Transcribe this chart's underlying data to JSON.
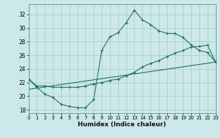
{
  "xlabel": "Humidex (Indice chaleur)",
  "bg_color": "#cce8e8",
  "grid_color": "#aacccc",
  "line_color": "#1a6b60",
  "xlim": [
    0,
    23
  ],
  "ylim": [
    17.5,
    33.5
  ],
  "xticks": [
    0,
    1,
    2,
    3,
    4,
    5,
    6,
    7,
    8,
    9,
    10,
    11,
    12,
    13,
    14,
    15,
    16,
    17,
    18,
    19,
    20,
    21,
    22,
    23
  ],
  "yticks": [
    18,
    20,
    22,
    24,
    26,
    28,
    30,
    32
  ],
  "line1_x": [
    0,
    1,
    2,
    3,
    4,
    5,
    6,
    7,
    8,
    9,
    10,
    11,
    12,
    13,
    14,
    15,
    16,
    17,
    18,
    19,
    20,
    21,
    22,
    23
  ],
  "line1_y": [
    22.5,
    21.3,
    20.3,
    19.8,
    18.8,
    18.5,
    18.3,
    18.3,
    19.5,
    26.7,
    28.7,
    29.3,
    30.8,
    32.6,
    31.2,
    30.5,
    29.6,
    29.2,
    29.2,
    28.6,
    27.5,
    26.7,
    26.4,
    25.0
  ],
  "line2_x": [
    0,
    1,
    2,
    3,
    4,
    5,
    6,
    7,
    8,
    9,
    10,
    11,
    12,
    13,
    14,
    15,
    16,
    17,
    18,
    19,
    20,
    21,
    22,
    23
  ],
  "line2_y": [
    22.5,
    21.5,
    21.5,
    21.3,
    21.3,
    21.3,
    21.3,
    21.5,
    21.8,
    22.0,
    22.3,
    22.5,
    23.0,
    23.5,
    24.3,
    24.8,
    25.2,
    25.8,
    26.3,
    26.7,
    27.2,
    27.3,
    27.5,
    25.0
  ],
  "line3_x": [
    0,
    23
  ],
  "line3_y": [
    21.0,
    25.0
  ]
}
